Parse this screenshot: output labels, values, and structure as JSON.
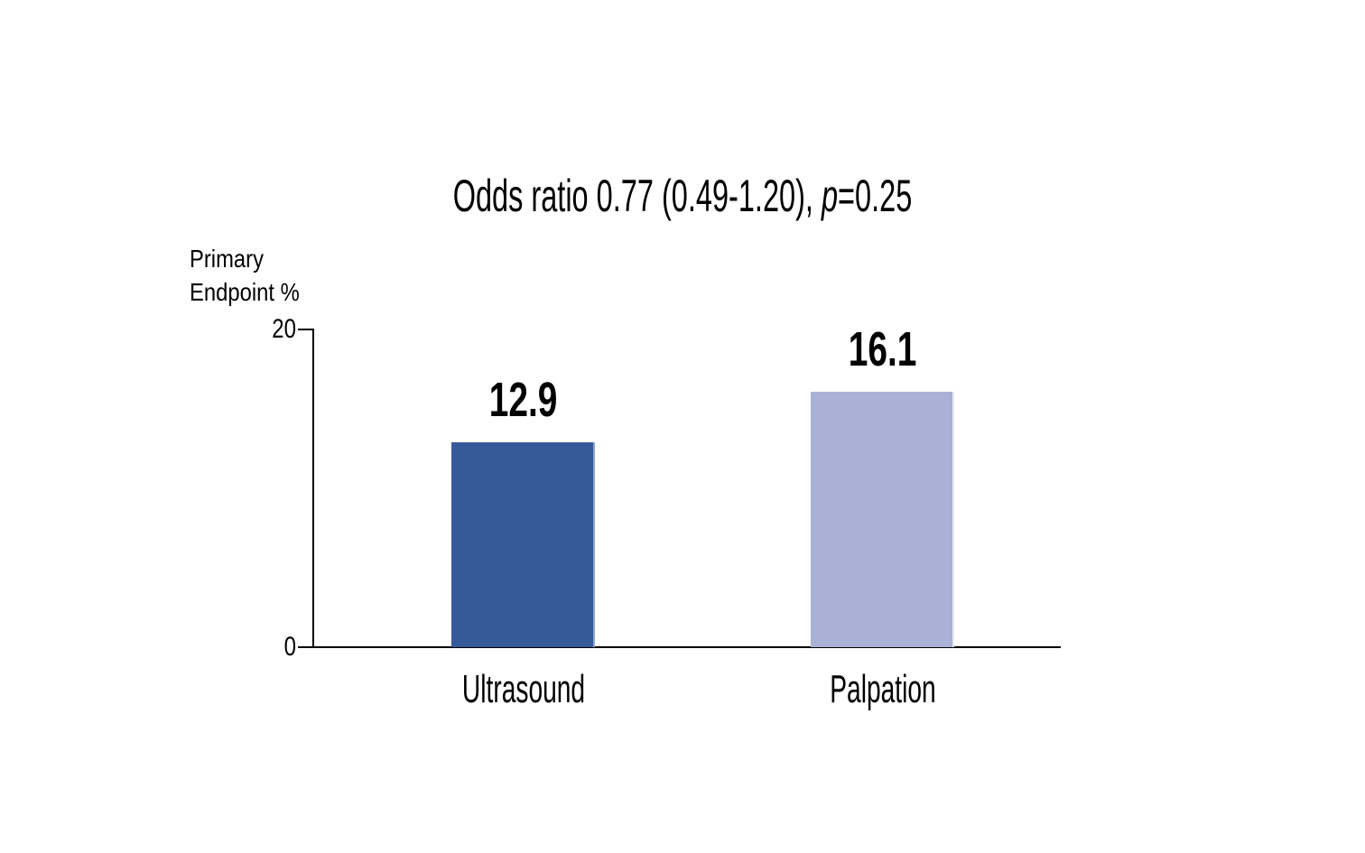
{
  "page": {
    "background_color": "#ffffff",
    "text_color": "#000000"
  },
  "chart_data": {
    "type": "bar",
    "title": {
      "prefix": "Odds ratio 0.77 (0.49-1.20), ",
      "p_italic": "p",
      "suffix": "=0.25",
      "full": "Odds ratio 0.77 (0.49-1.20), p=0.25"
    },
    "ylabel_line1": "Primary",
    "ylabel_line2": "Endpoint %",
    "categories": [
      "Ultrasound",
      "Palpation"
    ],
    "values": [
      12.9,
      16.1
    ],
    "value_labels": [
      "12.9",
      "16.1"
    ],
    "bar_colors": [
      "#36599a",
      "#a9b2d6"
    ],
    "bar_edge_colors": [
      "#8ea6ce",
      "#e6e8f4"
    ],
    "ylim": [
      0,
      20
    ],
    "yticks": [
      0,
      20
    ],
    "ytick_labels": [
      "0",
      "20"
    ],
    "xlabel": "",
    "ylabel": "Primary Endpoint %",
    "grid": false,
    "legend": false,
    "axis_color": "#000000"
  }
}
